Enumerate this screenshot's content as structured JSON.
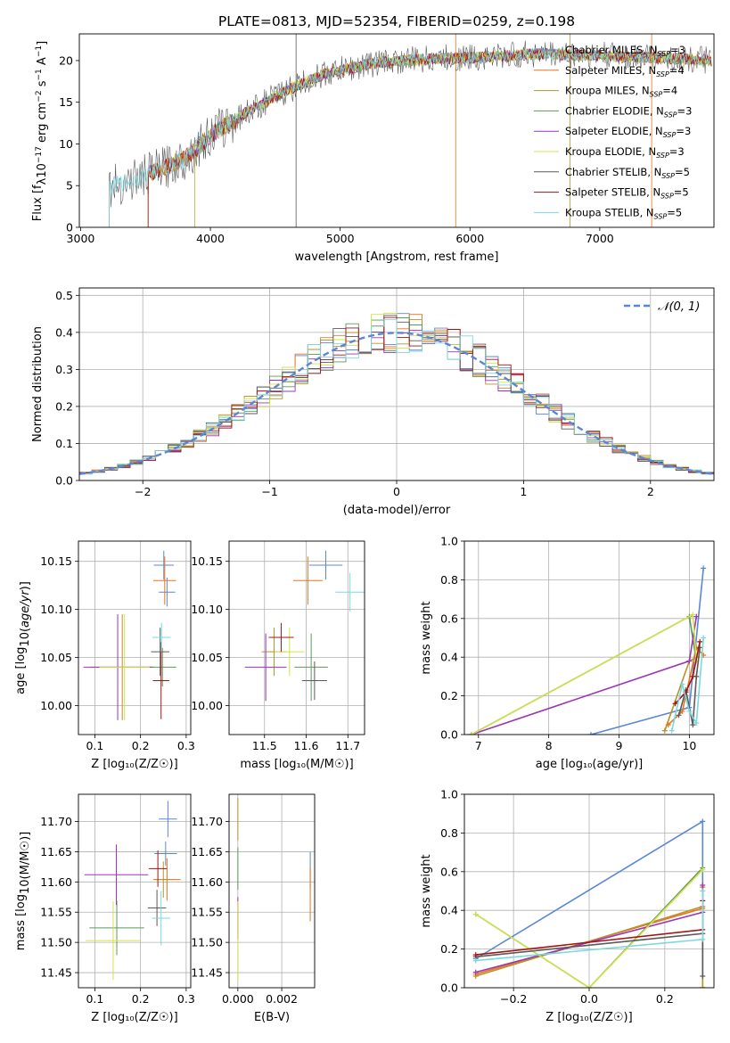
{
  "title": "PLATE=0813, MJD=52354, FIBERID=0259, z=0.198",
  "colors": [
    "#5b86d8",
    "#e8741c",
    "#b8922a",
    "#5a9a5a",
    "#9b35b8",
    "#d4e04a",
    "#5a5a5a",
    "#a31515",
    "#7ad8e0"
  ],
  "legend_models": [
    {
      "name": "Chabrier MILES",
      "n": "3"
    },
    {
      "name": "Salpeter MILES",
      "n": "4"
    },
    {
      "name": "Kroupa MILES",
      "n": "4"
    },
    {
      "name": "Chabrier ELODIE",
      "n": "3"
    },
    {
      "name": "Salpeter ELODIE",
      "n": "3"
    },
    {
      "name": "Kroupa ELODIE",
      "n": "3"
    },
    {
      "name": "Chabrier STELIB",
      "n": "5"
    },
    {
      "name": "Salpeter STELIB",
      "n": "5"
    },
    {
      "name": "Kroupa STELIB",
      "n": "5"
    }
  ],
  "chart_data": [
    {
      "id": "spectrum",
      "type": "line",
      "xlabel": "wavelength [Angstrom, rest frame]",
      "ylabel_main": "Flux [f",
      "ylabel_lambda": "λ",
      "ylabel_rest": "10",
      "ylabel_e1": "−17",
      "ylabel_mid": " erg cm",
      "ylabel_e2": "−2",
      "ylabel_s": " s",
      "ylabel_e3": "−1",
      "ylabel_A": " A",
      "ylabel_e4": "−1",
      "ylabel_end": "]",
      "xlim": [
        2990,
        7880
      ],
      "ylim": [
        0,
        23.2
      ],
      "xticks": [
        3000,
        4000,
        5000,
        6000,
        7000
      ],
      "yticks": [
        0,
        5,
        10,
        15,
        20
      ],
      "legend_sub": "SSP",
      "continuum": {
        "x": [
          3220,
          3300,
          3500,
          3800,
          4000,
          4300,
          4600,
          4900,
          5300,
          5700,
          6100,
          6500,
          7000,
          7500,
          7860
        ],
        "y": [
          4.8,
          5.2,
          6.2,
          8.2,
          11.0,
          14.0,
          16.5,
          18.5,
          19.8,
          20.2,
          20.4,
          20.8,
          20.6,
          20.3,
          20.0
        ]
      }
    },
    {
      "id": "residuals",
      "type": "histogram",
      "xlabel": "(data-model)/error",
      "ylabel": "Normed distribution",
      "xlim": [
        -2.5,
        2.5
      ],
      "ylim": [
        0,
        0.52
      ],
      "xticks": [
        -2,
        -1,
        0,
        1,
        2
      ],
      "yticks": [
        0.0,
        0.1,
        0.2,
        0.3,
        0.4,
        0.5
      ],
      "legend": "𝒩(0, 1)",
      "bin_width": 0.1
    },
    {
      "id": "age_vs_Z",
      "type": "errorbar",
      "xlabel": "Z [log₁₀(Z/Z☉)]",
      "ylabel": "age  [log₁₀(age/yr)]",
      "xlim": [
        0.064,
        0.31
      ],
      "ylim": [
        9.97,
        10.171
      ],
      "xticks": [
        0.1,
        0.2,
        0.3
      ],
      "yticks": [
        10.0,
        10.05,
        10.1,
        10.15
      ],
      "points": [
        {
          "x": 0.251,
          "y": 10.146,
          "xerr": 0.022,
          "yerr": 0.015
        },
        {
          "x": 0.253,
          "y": 10.13,
          "xerr": 0.025,
          "yerr": 0.025
        },
        {
          "x": 0.16,
          "y": 10.04,
          "xerr": 0.07,
          "yerr": 0.055
        },
        {
          "x": 0.248,
          "y": 10.04,
          "xerr": 0.03,
          "yerr": 0.02
        },
        {
          "x": 0.15,
          "y": 10.04,
          "xerr": 0.075,
          "yerr": 0.055
        },
        {
          "x": 0.165,
          "y": 10.04,
          "xerr": 0.055,
          "yerr": 0.055
        },
        {
          "x": 0.243,
          "y": 10.056,
          "xerr": 0.02,
          "yerr": 0.025
        },
        {
          "x": 0.245,
          "y": 10.026,
          "xerr": 0.018,
          "yerr": 0.04
        },
        {
          "x": 0.246,
          "y": 10.071,
          "xerr": 0.02,
          "yerr": 0.015
        },
        {
          "x": 0.258,
          "y": 10.118,
          "xerr": 0.018,
          "yerr": 0.015
        }
      ]
    },
    {
      "id": "age_vs_mass",
      "type": "errorbar",
      "xlabel": "mass [log₁₀(M/M☉)]",
      "ylabel": "",
      "xlim": [
        11.415,
        11.74
      ],
      "ylim": [
        9.97,
        10.171
      ],
      "xticks": [
        11.5,
        11.6,
        11.7
      ],
      "yticks": [
        10.0,
        10.05,
        10.1,
        10.15
      ],
      "points": [
        {
          "x": 11.647,
          "y": 10.146,
          "xerr": 0.04,
          "yerr": 0.015
        },
        {
          "x": 11.604,
          "y": 10.13,
          "xerr": 0.035,
          "yerr": 0.025
        },
        {
          "x": 11.523,
          "y": 10.056,
          "xerr": 0.03,
          "yerr": 0.025
        },
        {
          "x": 11.612,
          "y": 10.04,
          "xerr": 0.04,
          "yerr": 0.035
        },
        {
          "x": 11.503,
          "y": 10.04,
          "xerr": 0.05,
          "yerr": 0.035
        },
        {
          "x": 11.56,
          "y": 10.056,
          "xerr": 0.035,
          "yerr": 0.025
        },
        {
          "x": 11.62,
          "y": 10.026,
          "xerr": 0.03,
          "yerr": 0.02
        },
        {
          "x": 11.54,
          "y": 10.071,
          "xerr": 0.03,
          "yerr": 0.015
        },
        {
          "x": 11.705,
          "y": 10.118,
          "xerr": 0.035,
          "yerr": 0.02
        }
      ]
    },
    {
      "id": "weights_vs_age",
      "type": "line",
      "xlabel": "age  [log₁₀(age/yr)]",
      "ylabel": "mass weight",
      "xlim": [
        6.8,
        10.35
      ],
      "ylim": [
        0,
        1.0
      ],
      "xticks": [
        7,
        8,
        9,
        10
      ],
      "yticks": [
        0.0,
        0.2,
        0.4,
        0.6,
        0.8,
        1.0
      ],
      "series": [
        {
          "x": [
            8.6,
            10.0,
            10.2
          ],
          "y": [
            0.0,
            0.14,
            0.86
          ]
        },
        {
          "x": [
            9.7,
            9.9,
            10.1,
            10.2
          ],
          "y": [
            0.05,
            0.12,
            0.45,
            0.41
          ]
        },
        {
          "x": [
            9.65,
            10.0,
            10.1
          ],
          "y": [
            0.02,
            0.38,
            0.4
          ]
        },
        {
          "x": [
            6.9,
            10.0,
            10.1
          ],
          "y": [
            0.0,
            0.61,
            0.38
          ]
        },
        {
          "x": [
            6.9,
            10.0,
            10.1
          ],
          "y": [
            0.0,
            0.38,
            0.61
          ]
        },
        {
          "x": [
            6.9,
            10.05,
            10.1
          ],
          "y": [
            0.0,
            0.62,
            0.38
          ]
        },
        {
          "x": [
            9.85,
            9.95,
            10.05,
            10.1,
            10.15
          ],
          "y": [
            0.1,
            0.23,
            0.05,
            0.3,
            0.45
          ]
        },
        {
          "x": [
            9.8,
            9.95,
            10.05,
            10.15
          ],
          "y": [
            0.16,
            0.22,
            0.3,
            0.48
          ]
        },
        {
          "x": [
            9.75,
            9.9,
            10.0,
            10.1,
            10.2
          ],
          "y": [
            0.02,
            0.26,
            0.12,
            0.06,
            0.5
          ]
        }
      ]
    },
    {
      "id": "mass_vs_Z",
      "type": "errorbar",
      "xlabel": "Z [log₁₀(Z/Z☉)]",
      "ylabel": "mass [log₁₀(M/M☉)]",
      "xlim": [
        0.064,
        0.31
      ],
      "ylim": [
        11.425,
        11.745
      ],
      "xticks": [
        0.1,
        0.2,
        0.3
      ],
      "yticks": [
        11.45,
        11.5,
        11.55,
        11.6,
        11.65,
        11.7
      ],
      "points": [
        {
          "x": 0.255,
          "y": 11.647,
          "xerr": 0.025,
          "yerr": 0.02
        },
        {
          "x": 0.258,
          "y": 11.604,
          "xerr": 0.03,
          "yerr": 0.035
        },
        {
          "x": 0.25,
          "y": 11.604,
          "xerr": 0.02,
          "yerr": 0.03
        },
        {
          "x": 0.148,
          "y": 11.524,
          "xerr": 0.06,
          "yerr": 0.045
        },
        {
          "x": 0.147,
          "y": 11.612,
          "xerr": 0.07,
          "yerr": 0.05
        },
        {
          "x": 0.14,
          "y": 11.503,
          "xerr": 0.06,
          "yerr": 0.065
        },
        {
          "x": 0.236,
          "y": 11.557,
          "xerr": 0.02,
          "yerr": 0.03
        },
        {
          "x": 0.238,
          "y": 11.622,
          "xerr": 0.02,
          "yerr": 0.03
        },
        {
          "x": 0.245,
          "y": 11.54,
          "xerr": 0.02,
          "yerr": 0.045
        },
        {
          "x": 0.26,
          "y": 11.704,
          "xerr": 0.02,
          "yerr": 0.03
        }
      ]
    },
    {
      "id": "mass_vs_ebv",
      "type": "errorbar",
      "xlabel": "E(B-V)",
      "ylabel": "",
      "xlim": [
        -0.0004,
        0.0035
      ],
      "ylim": [
        11.425,
        11.745
      ],
      "xticks": [
        0.0,
        0.002
      ],
      "yticks": [
        11.45,
        11.5,
        11.55,
        11.6,
        11.65,
        11.7
      ],
      "points": [
        {
          "x": 0.0033,
          "y": 11.62,
          "xerr": 0,
          "yerr": 0.03
        },
        {
          "x": 0.0033,
          "y": 11.58,
          "xerr": 0,
          "yerr": 0.045
        },
        {
          "x": 0.0,
          "y": 11.704,
          "xerr": 0,
          "yerr": 0.035
        },
        {
          "x": 0.0,
          "y": 11.622,
          "xerr": 0,
          "yerr": 0.035
        },
        {
          "x": 0.0,
          "y": 11.54,
          "xerr": 0,
          "yerr": 0.035
        },
        {
          "x": 0.0,
          "y": 11.503,
          "xerr": 0,
          "yerr": 0.065
        }
      ]
    },
    {
      "id": "weights_vs_Z",
      "type": "line",
      "xlabel": "Z [log₁₀(Z/Z☉)]",
      "ylabel": "mass weight",
      "xlim": [
        -0.33,
        0.33
      ],
      "ylim": [
        0,
        1.0
      ],
      "xticks": [
        -0.2,
        0.0,
        0.2
      ],
      "yticks": [
        0.0,
        0.2,
        0.4,
        0.6,
        0.8,
        1.0
      ],
      "series": [
        {
          "x": [
            -0.3,
            0.3,
            0.3
          ],
          "y": [
            0.15,
            0.86,
            0.0
          ]
        },
        {
          "x": [
            -0.3,
            0.3,
            0.3
          ],
          "y": [
            0.07,
            0.41,
            0.52
          ]
        },
        {
          "x": [
            -0.3,
            0.3,
            0.3
          ],
          "y": [
            0.06,
            0.42,
            0.0
          ]
        },
        {
          "x": [
            -0.3,
            0.0,
            0.3
          ],
          "y": [
            0.38,
            0.0,
            0.62
          ]
        },
        {
          "x": [
            -0.3,
            0.3,
            0.3
          ],
          "y": [
            0.08,
            0.39,
            0.53
          ]
        },
        {
          "x": [
            -0.3,
            0.0,
            0.3
          ],
          "y": [
            0.38,
            0.0,
            0.61
          ]
        },
        {
          "x": [
            -0.3,
            0.3,
            0.3
          ],
          "y": [
            0.16,
            0.28,
            0.06
          ]
        },
        {
          "x": [
            -0.3,
            0.3,
            0.3
          ],
          "y": [
            0.17,
            0.3,
            0.45
          ]
        },
        {
          "x": [
            -0.3,
            0.3,
            0.3
          ],
          "y": [
            0.14,
            0.25,
            0.5
          ]
        }
      ]
    }
  ]
}
